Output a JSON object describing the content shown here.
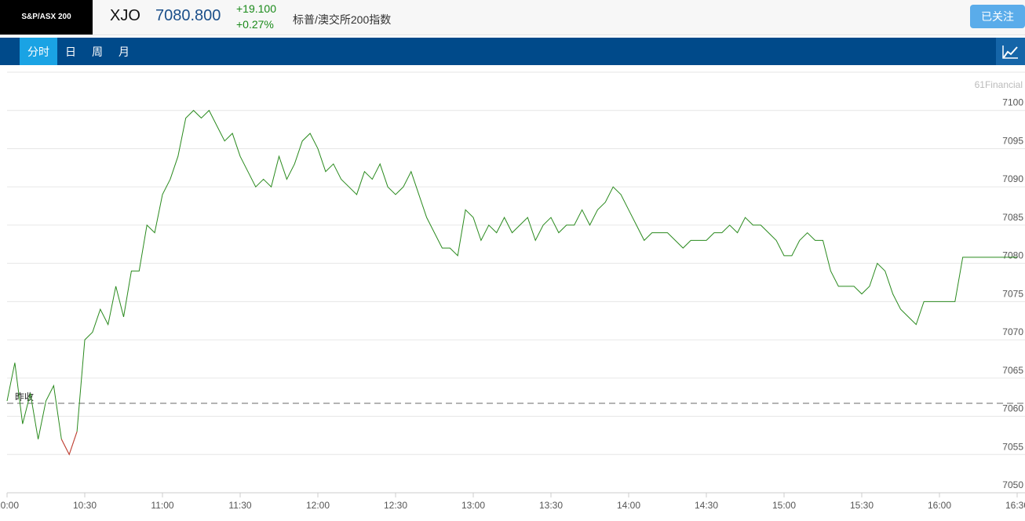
{
  "header": {
    "ticker_box": "S&P/ASX 200",
    "symbol": "XJO",
    "price": "7080.800",
    "change": "+19.100",
    "change_pct": "+0.27%",
    "name": "标普/澳交所200指数",
    "follow_button": "已关注"
  },
  "tabs": [
    "分时",
    "日",
    "周",
    "月"
  ],
  "watermark": "61Financial",
  "chart_data": {
    "type": "line",
    "prev_close": 7061.7,
    "prev_close_label": "昨收",
    "color_up": "#2a8a1e",
    "color_down": "#d6393a",
    "xlim": [
      "10:00",
      "16:30"
    ],
    "xticks": [
      "10:00",
      "10:30",
      "11:00",
      "11:30",
      "12:00",
      "12:30",
      "13:00",
      "13:30",
      "14:00",
      "14:30",
      "15:00",
      "15:30",
      "16:00",
      "16:30"
    ],
    "ylim": [
      7050,
      7105
    ],
    "yticks": [
      7050,
      7055,
      7060,
      7065,
      7070,
      7075,
      7080,
      7085,
      7090,
      7095,
      7100
    ],
    "grid": true,
    "x": [
      "10:00",
      "10:03",
      "10:06",
      "10:09",
      "10:12",
      "10:15",
      "10:18",
      "10:21",
      "10:24",
      "10:27",
      "10:30",
      "10:33",
      "10:36",
      "10:39",
      "10:42",
      "10:45",
      "10:48",
      "10:51",
      "10:54",
      "10:57",
      "11:00",
      "11:03",
      "11:06",
      "11:09",
      "11:12",
      "11:15",
      "11:18",
      "11:21",
      "11:24",
      "11:27",
      "11:30",
      "11:33",
      "11:36",
      "11:39",
      "11:42",
      "11:45",
      "11:48",
      "11:51",
      "11:54",
      "11:57",
      "12:00",
      "12:03",
      "12:06",
      "12:09",
      "12:12",
      "12:15",
      "12:18",
      "12:21",
      "12:24",
      "12:27",
      "12:30",
      "12:33",
      "12:36",
      "12:39",
      "12:42",
      "12:45",
      "12:48",
      "12:51",
      "12:54",
      "12:57",
      "13:00",
      "13:03",
      "13:06",
      "13:09",
      "13:12",
      "13:15",
      "13:18",
      "13:21",
      "13:24",
      "13:27",
      "13:30",
      "13:33",
      "13:36",
      "13:39",
      "13:42",
      "13:45",
      "13:48",
      "13:51",
      "13:54",
      "13:57",
      "14:00",
      "14:03",
      "14:06",
      "14:09",
      "14:12",
      "14:15",
      "14:18",
      "14:21",
      "14:24",
      "14:27",
      "14:30",
      "14:33",
      "14:36",
      "14:39",
      "14:42",
      "14:45",
      "14:48",
      "14:51",
      "14:54",
      "14:57",
      "15:00",
      "15:03",
      "15:06",
      "15:09",
      "15:12",
      "15:15",
      "15:18",
      "15:21",
      "15:24",
      "15:27",
      "15:30",
      "15:33",
      "15:36",
      "15:39",
      "15:42",
      "15:45",
      "15:48",
      "15:51",
      "15:54",
      "15:57",
      "16:00",
      "16:03",
      "16:06",
      "16:09",
      "16:12",
      "16:15",
      "16:18",
      "16:21",
      "16:24",
      "16:27",
      "16:30"
    ],
    "values": [
      7062,
      7067,
      7059,
      7063,
      7057,
      7062,
      7064,
      7057,
      7055,
      7058,
      7070,
      7071,
      7074,
      7072,
      7077,
      7073,
      7079,
      7079,
      7085,
      7084,
      7089,
      7091,
      7094,
      7099,
      7100,
      7099,
      7100,
      7098,
      7096,
      7097,
      7094,
      7092,
      7090,
      7091,
      7090,
      7094,
      7091,
      7093,
      7096,
      7097,
      7095,
      7092,
      7093,
      7091,
      7090,
      7089,
      7092,
      7091,
      7093,
      7090,
      7089,
      7090,
      7092,
      7089,
      7086,
      7084,
      7082,
      7082,
      7081,
      7087,
      7086,
      7083,
      7085,
      7084,
      7086,
      7084,
      7085,
      7086,
      7083,
      7085,
      7086,
      7084,
      7085,
      7085,
      7087,
      7085,
      7087,
      7088,
      7090,
      7089,
      7087,
      7085,
      7083,
      7084,
      7084,
      7084,
      7083,
      7082,
      7083,
      7083,
      7083,
      7084,
      7084,
      7085,
      7084,
      7086,
      7085,
      7085,
      7084,
      7083,
      7081,
      7081,
      7083,
      7084,
      7083,
      7083,
      7079,
      7077,
      7077,
      7077,
      7076,
      7077,
      7080,
      7079,
      7076,
      7074,
      7073,
      7072,
      7075,
      7075,
      7075,
      7075,
      7075,
      7080.8,
      7080.8,
      7080.8,
      7080.8,
      7080.8,
      7080.8,
      7080.8,
      7080.8
    ]
  }
}
